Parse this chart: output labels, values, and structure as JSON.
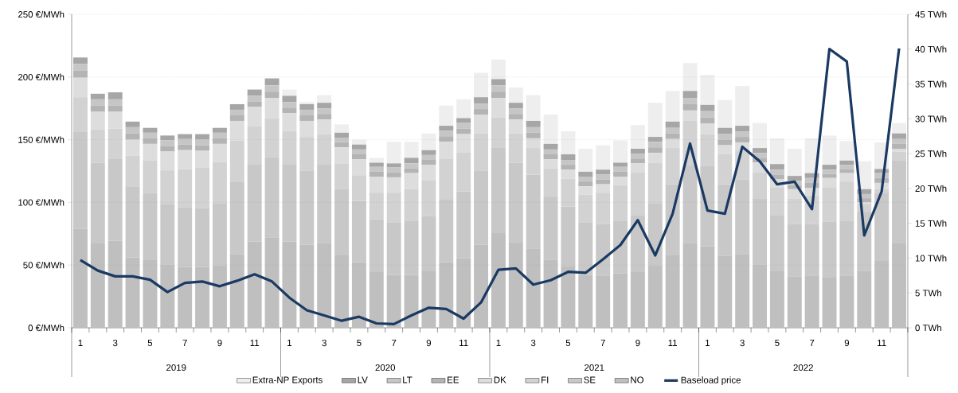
{
  "chart_data": {
    "type": "bar",
    "stacked": true,
    "categories": [
      "1",
      null,
      "3",
      null,
      "5",
      null,
      "7",
      null,
      "9",
      null,
      "11",
      null,
      "1",
      null,
      "3",
      null,
      "5",
      null,
      "7",
      null,
      "9",
      null,
      "11",
      null,
      "1",
      null,
      "3",
      null,
      "5",
      null,
      "7",
      null,
      "9",
      null,
      "11",
      null,
      "1",
      null,
      "3",
      null,
      "5",
      null,
      "7",
      null,
      "9",
      null,
      "11",
      null
    ],
    "annotations": [
      "2019",
      "2020",
      "2021",
      "2022"
    ],
    "series": [
      {
        "name": "NO",
        "color": "#bfbfbf",
        "axis": "y2",
        "values": [
          14.2,
          12.1,
          12.5,
          10.1,
          9.7,
          9.1,
          8.7,
          8.7,
          9.0,
          10.6,
          12.4,
          13.0,
          12.4,
          11.9,
          12.2,
          10.4,
          9.4,
          8.0,
          7.6,
          7.6,
          8.1,
          9.4,
          10.0,
          11.9,
          13.6,
          12.3,
          11.4,
          9.8,
          8.8,
          7.6,
          7.5,
          7.8,
          8.0,
          9.0,
          10.4,
          12.2,
          11.7,
          10.3,
          10.6,
          9.1,
          8.1,
          7.4,
          7.5,
          7.2,
          7.5,
          8.2,
          9.6,
          12.1
        ]
      },
      {
        "name": "SE",
        "color": "#c8c8c8",
        "axis": "y2",
        "values": [
          13.9,
          11.6,
          11.8,
          10.2,
          9.7,
          8.7,
          8.6,
          8.5,
          8.9,
          10.4,
          11.0,
          11.5,
          11.0,
          10.7,
          11.2,
          9.5,
          8.8,
          7.6,
          7.5,
          7.8,
          7.9,
          9.0,
          9.6,
          10.7,
          12.2,
          11.4,
          10.6,
          9.1,
          8.6,
          7.5,
          7.4,
          7.6,
          8.2,
          8.9,
          10.2,
          11.1,
          11.5,
          10.3,
          10.7,
          9.4,
          8.1,
          7.5,
          7.4,
          8.0,
          7.9,
          8.5,
          9.7,
          11.9
        ]
      },
      {
        "name": "FI",
        "color": "#d2d2d2",
        "axis": "y2",
        "values": [
          5.0,
          4.8,
          4.3,
          4.4,
          4.6,
          4.8,
          5.5,
          5.8,
          5.9,
          5.9,
          5.5,
          5.6,
          4.8,
          4.8,
          4.4,
          3.7,
          3.7,
          3.8,
          4.3,
          4.5,
          5.2,
          5.9,
          5.6,
          5.3,
          4.4,
          4.2,
          3.8,
          4.0,
          4.0,
          4.0,
          4.5,
          5.1,
          6.1,
          5.8,
          5.2,
          6.4,
          4.6,
          4.3,
          4.2,
          3.8,
          3.9,
          3.6,
          4.1,
          4.9,
          5.6,
          1.1,
          0.6,
          1.3
        ]
      },
      {
        "name": "DK",
        "color": "#dddddd",
        "axis": "y2",
        "values": [
          2.8,
          2.5,
          2.4,
          2.3,
          2.4,
          2.7,
          2.7,
          2.4,
          2.6,
          2.8,
          2.8,
          2.9,
          2.6,
          2.3,
          2.1,
          2.3,
          2.3,
          2.3,
          2.2,
          2.3,
          2.2,
          2.4,
          2.6,
          2.7,
          2.8,
          2.0,
          1.4,
          1.3,
          1.3,
          1.2,
          1.2,
          1.2,
          1.3,
          1.4,
          1.3,
          1.5,
          1.5,
          1.3,
          1.1,
          1.4,
          1.2,
          1.4,
          1.1,
          1.4,
          1.2,
          0.2,
          0.9,
          0.4
        ]
      },
      {
        "name": "EE",
        "color": "#b4b4b4",
        "axis": "y2",
        "values": [
          1.0,
          0.9,
          0.9,
          0.9,
          0.8,
          0.8,
          0.8,
          0.8,
          0.8,
          0.8,
          0.8,
          0.9,
          0.8,
          0.8,
          0.8,
          0.7,
          0.7,
          0.7,
          0.7,
          0.7,
          0.7,
          0.8,
          0.8,
          0.8,
          0.9,
          0.8,
          0.8,
          0.7,
          0.7,
          0.7,
          0.7,
          0.7,
          0.7,
          0.8,
          0.8,
          0.9,
          0.9,
          0.8,
          0.8,
          0.7,
          0.7,
          0.6,
          0.7,
          0.6,
          0.6,
          0.6,
          0.7,
          0.7
        ]
      },
      {
        "name": "LT",
        "color": "#c6c6c6",
        "axis": "y2",
        "values": [
          1.0,
          0.9,
          0.9,
          0.9,
          0.8,
          0.8,
          0.8,
          0.8,
          0.8,
          0.8,
          0.8,
          0.9,
          0.8,
          0.8,
          0.8,
          0.7,
          0.7,
          0.7,
          0.7,
          0.7,
          0.7,
          0.8,
          0.8,
          0.8,
          0.9,
          0.8,
          0.8,
          0.7,
          0.7,
          0.7,
          0.7,
          0.7,
          0.7,
          0.8,
          0.8,
          0.9,
          0.9,
          0.8,
          0.8,
          0.7,
          0.7,
          0.6,
          0.7,
          0.6,
          0.6,
          0.6,
          0.7,
          0.7
        ]
      },
      {
        "name": "LV",
        "color": "#a6a6a6",
        "axis": "y2",
        "values": [
          0.9,
          0.8,
          1.0,
          0.8,
          0.7,
          0.7,
          0.7,
          0.8,
          0.7,
          0.8,
          0.9,
          1.0,
          0.9,
          0.8,
          0.8,
          0.7,
          0.7,
          0.6,
          0.6,
          0.8,
          0.7,
          0.7,
          0.7,
          0.9,
          0.9,
          0.8,
          0.9,
          0.8,
          0.8,
          0.7,
          0.7,
          0.6,
          0.7,
          0.7,
          0.9,
          1.0,
          0.9,
          0.9,
          0.8,
          0.7,
          0.8,
          0.7,
          0.7,
          0.7,
          0.6,
          0.7,
          0.6,
          0.8
        ]
      },
      {
        "name": "Extra-NP Exports",
        "color": "#eeeeee",
        "axis": "y2",
        "values": [
          0,
          0,
          0,
          0,
          0,
          0,
          0,
          0,
          0,
          0,
          0,
          0,
          0.9,
          0.3,
          1.1,
          1.2,
          0.7,
          0.7,
          3.1,
          2.3,
          2.4,
          2.9,
          2.7,
          3.5,
          2.8,
          2.2,
          3.7,
          4.2,
          3.3,
          3.3,
          3.5,
          3.2,
          3.4,
          4.9,
          4.4,
          4.0,
          4.3,
          4.0,
          5.7,
          3.6,
          3.7,
          3.9,
          5.0,
          4.2,
          2.8,
          4.0,
          3.8,
          1.5
        ]
      },
      {
        "name": "Baseload price",
        "type": "line",
        "color": "#1a3a63",
        "axis": "y",
        "values": [
          54,
          45.6,
          41,
          41,
          38.3,
          28.5,
          35.8,
          36.9,
          33.1,
          37.5,
          42.7,
          36.9,
          24,
          14,
          9.8,
          5.6,
          8.8,
          3.5,
          2.9,
          9.8,
          16,
          15,
          7.3,
          20.2,
          46.3,
          47.3,
          34.4,
          37.9,
          44.6,
          43.8,
          54.6,
          66,
          85.8,
          57.7,
          91,
          146.9,
          93.5,
          91,
          144.4,
          132.8,
          114.4,
          116.5,
          94.6,
          222.4,
          212.3,
          73.6,
          108.8,
          222.8
        ]
      }
    ],
    "ylim": [
      0,
      250
    ],
    "yticks": [
      {
        "value": 0,
        "label": "0 €/MWh"
      },
      {
        "value": 50,
        "label": "50 €/MWh"
      },
      {
        "value": 100,
        "label": "100 €/MWh"
      },
      {
        "value": 150,
        "label": "150 €/MWh"
      },
      {
        "value": 200,
        "label": "200 €/MWh"
      },
      {
        "value": 250,
        "label": "250 €/MWh"
      }
    ],
    "y2lim": [
      0,
      45
    ],
    "y2ticks": [
      {
        "value": 0,
        "label": "0 TWh"
      },
      {
        "value": 5,
        "label": "5 TWh"
      },
      {
        "value": 10,
        "label": "10 TWh"
      },
      {
        "value": 15,
        "label": "15 TWh"
      },
      {
        "value": 20,
        "label": "20 TWh"
      },
      {
        "value": 25,
        "label": "25 TWh"
      },
      {
        "value": 30,
        "label": "30 TWh"
      },
      {
        "value": 35,
        "label": "35 TWh"
      },
      {
        "value": 40,
        "label": "40 TWh"
      },
      {
        "value": 45,
        "label": "45 TWh"
      }
    ],
    "grid": "y",
    "legend": "bottom"
  }
}
